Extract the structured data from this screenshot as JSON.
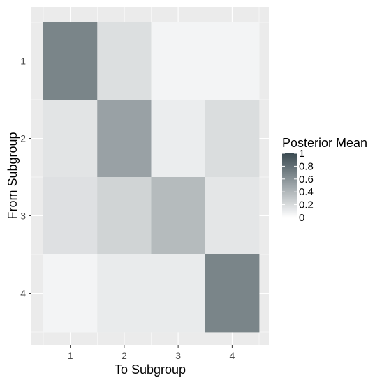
{
  "chart_data": {
    "type": "heatmap",
    "xlabel": "To Subgroup",
    "ylabel": "From Subgroup",
    "x_categories": [
      "1",
      "2",
      "3",
      "4"
    ],
    "y_categories": [
      "1",
      "2",
      "3",
      "4"
    ],
    "values": [
      [
        0.68,
        0.18,
        0.06,
        0.06
      ],
      [
        0.15,
        0.52,
        0.1,
        0.19
      ],
      [
        0.17,
        0.24,
        0.38,
        0.14
      ],
      [
        0.06,
        0.11,
        0.11,
        0.68
      ]
    ],
    "grid": true,
    "legend": {
      "title": "Posterior Mean",
      "ticks": [
        "1",
        "0.8",
        "0.6",
        "0.4",
        "0.2",
        "0"
      ],
      "tick_values": [
        1,
        0.8,
        0.6,
        0.4,
        0.2,
        0
      ],
      "range": [
        0,
        1
      ],
      "position": "right"
    },
    "colors": {
      "low": "#ffffff",
      "high": "#3b4b52",
      "panel_background": "#ebebeb",
      "grid": "#ffffff"
    }
  }
}
